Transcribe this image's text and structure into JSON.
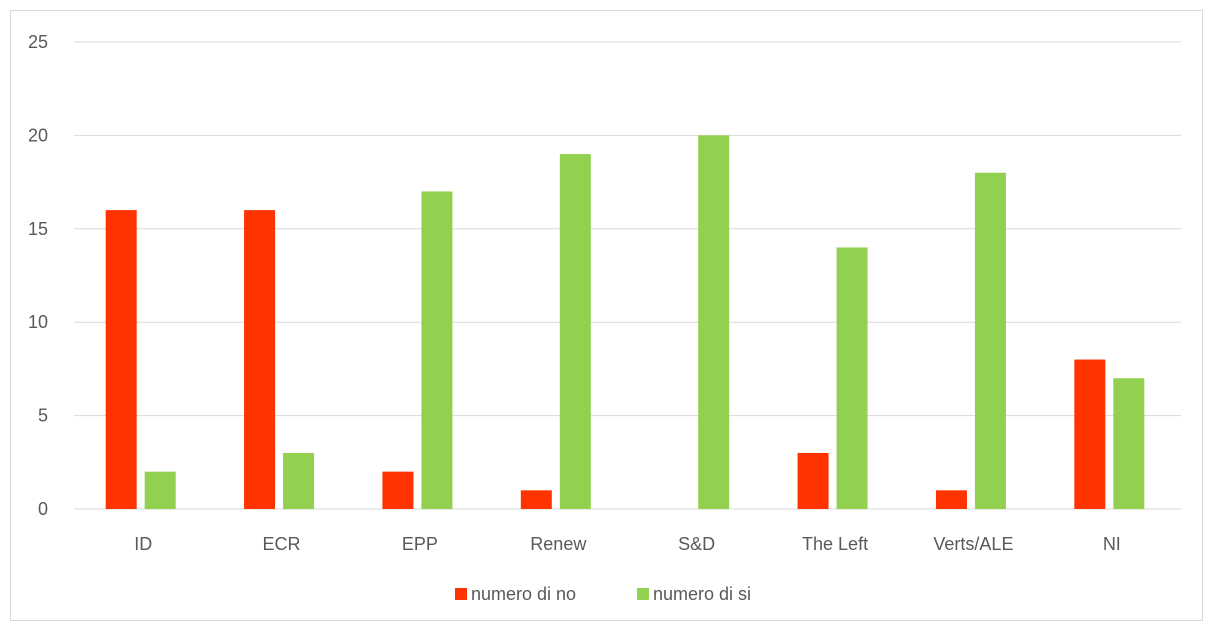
{
  "chart_data": {
    "type": "bar",
    "categories": [
      "ID",
      "ECR",
      "EPP",
      "Renew",
      "S&D",
      "The Left",
      "Verts/ALE",
      "NI"
    ],
    "series": [
      {
        "name": "numero di no",
        "color": "#ff3300",
        "values": [
          16,
          16,
          2,
          1,
          0,
          3,
          1,
          8
        ]
      },
      {
        "name": "numero di si",
        "color": "#92d050",
        "values": [
          2,
          3,
          17,
          19,
          20,
          14,
          18,
          7
        ]
      }
    ],
    "title": "",
    "xlabel": "",
    "ylabel": "",
    "ylim": [
      0,
      25
    ],
    "yticks": [
      0,
      5,
      10,
      15,
      20,
      25
    ],
    "grid": true,
    "grid_color": "#d9d9d9",
    "legend": "bottom"
  }
}
